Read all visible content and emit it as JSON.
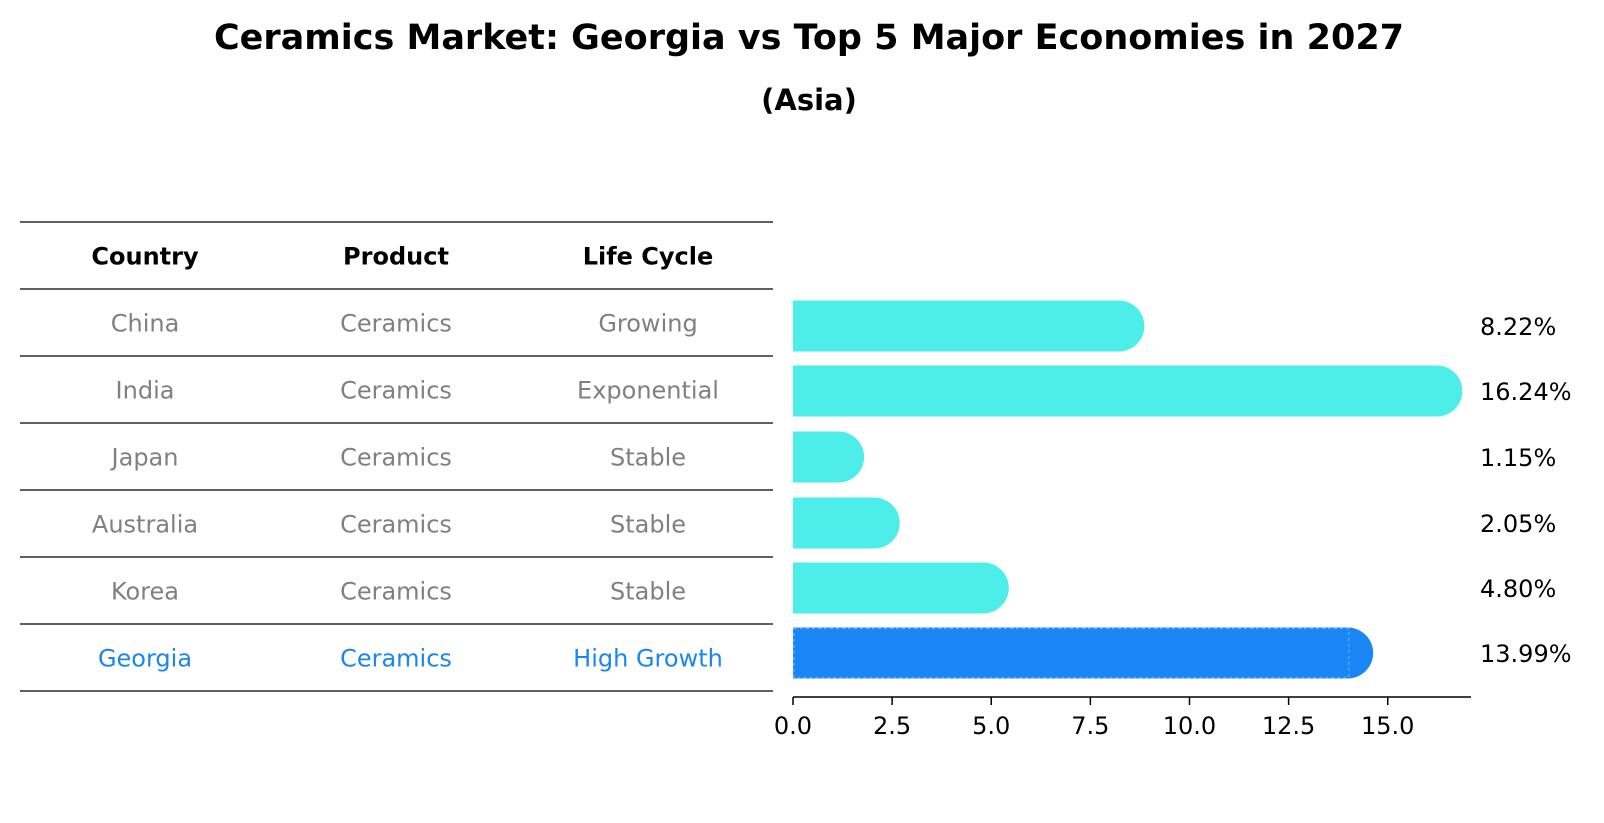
{
  "title": "Ceramics Market: Georgia vs Top 5 Major Economies in 2027",
  "subtitle": "(Asia)",
  "table": {
    "headers": [
      "Country",
      "Product",
      "Life Cycle"
    ],
    "rows": [
      {
        "country": "China",
        "product": "Ceramics",
        "life_cycle": "Growing",
        "highlight": false
      },
      {
        "country": "India",
        "product": "Ceramics",
        "life_cycle": "Exponential",
        "highlight": false
      },
      {
        "country": "Japan",
        "product": "Ceramics",
        "life_cycle": "Stable",
        "highlight": false
      },
      {
        "country": "Australia",
        "product": "Ceramics",
        "life_cycle": "Stable",
        "highlight": false
      },
      {
        "country": "Korea",
        "product": "Ceramics",
        "life_cycle": "Stable",
        "highlight": false
      },
      {
        "country": "Georgia",
        "product": "Ceramics",
        "life_cycle": "High Growth",
        "highlight": true
      }
    ]
  },
  "colors": {
    "bar": "#4deeea",
    "highlight_bar": "#1a86f5",
    "highlight_text": "#1a86f5",
    "muted_text": "#808080",
    "text": "#000000"
  },
  "chart_data": {
    "type": "bar",
    "orientation": "horizontal",
    "categories": [
      "China",
      "India",
      "Japan",
      "Australia",
      "Korea",
      "Georgia"
    ],
    "values": [
      8.22,
      16.24,
      1.15,
      2.05,
      4.8,
      13.99
    ],
    "value_labels": [
      "8.22%",
      "16.24%",
      "1.15%",
      "2.05%",
      "4.80%",
      "13.99%"
    ],
    "highlight_category": "Georgia",
    "xlim": [
      0,
      17.1
    ],
    "xticks": [
      0.0,
      2.5,
      5.0,
      7.5,
      10.0,
      12.5,
      15.0
    ],
    "xtick_labels": [
      "0.0",
      "2.5",
      "5.0",
      "7.5",
      "10.0",
      "12.5",
      "15.0"
    ],
    "grid": false,
    "xlabel": "",
    "ylabel": ""
  }
}
